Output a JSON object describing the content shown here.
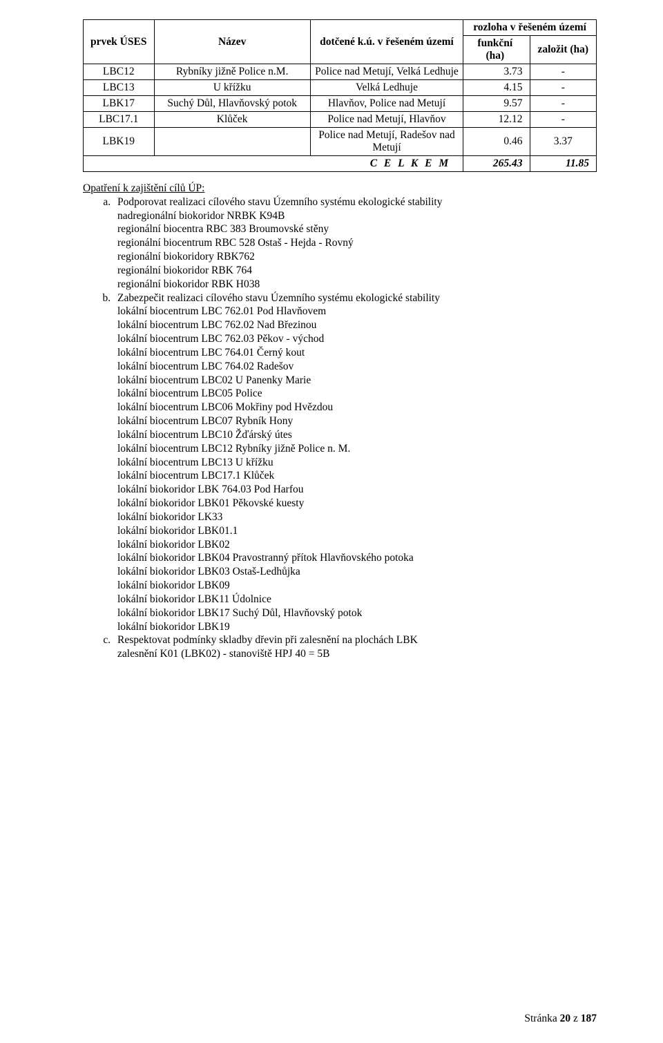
{
  "table": {
    "header": {
      "prvek": "prvek ÚSES",
      "nazev": "Název",
      "dotcene": "dotčené k.ú. v řešeném území",
      "rozloha": "rozloha v řešeném území",
      "funkcni": "funkční (ha)",
      "zalozit": "založit (ha)"
    },
    "rows": [
      {
        "c1": "LBC12",
        "c2": "Rybníky jižně Police n.M.",
        "c3": "Police nad Metují, Velká Ledhuje",
        "c4": "3.73",
        "c5": "-"
      },
      {
        "c1": "LBC13",
        "c2": "U křížku",
        "c3": "Velká Ledhuje",
        "c4": "4.15",
        "c5": "-"
      },
      {
        "c1": "LBK17",
        "c2": "Suchý Důl, Hlavňovský potok",
        "c3": "Hlavňov, Police nad Metují",
        "c4": "9.57",
        "c5": "-"
      },
      {
        "c1": "LBC17.1",
        "c2": "Klůček",
        "c3": "Police nad Metují, Hlavňov",
        "c4": "12.12",
        "c5": "-"
      },
      {
        "c1": "LBK19",
        "c2": "",
        "c3": "Police nad Metují, Radešov nad Metují",
        "c4": "0.46",
        "c5": "3.37"
      }
    ],
    "total": {
      "label": "C E L K E M",
      "c4": "265.43",
      "c5": "11.85"
    }
  },
  "measures": {
    "heading": "Opatření k zajištění cílů ÚP:",
    "a_lead": "Podporovat realizaci cílového stavu Územního systému ekologické stability",
    "a_lines": [
      "nadregionální biokoridor NRBK K94B",
      "regionální biocentra RBC 383 Broumovské stěny",
      "regionální biocentrum RBC 528 Ostaš - Hejda - Rovný",
      "regionální biokoridory RBK762",
      "regionální biokoridor RBK 764",
      "regionální biokoridor RBK H038"
    ],
    "b_lead": "Zabezpečit realizaci cílového stavu Územního systému ekologické stability",
    "b_lines": [
      "lokální biocentrum LBC 762.01 Pod Hlavňovem",
      "lokální biocentrum LBC 762.02 Nad Březinou",
      "lokální biocentrum LBC 762.03 Pěkov - východ",
      "lokální biocentrum LBC 764.01 Černý kout",
      "lokální biocentrum LBC 764.02 Radešov",
      "lokální biocentrum LBC02   U Panenky Marie",
      "lokální biocentrum LBC05 Police",
      "lokální biocentrum LBC06   Mokřiny pod Hvězdou",
      "lokální biocentrum LBC07   Rybník Hony",
      "lokální biocentrum LBC10   Žďárský útes",
      "lokální biocentrum LBC12   Rybníky jižně Police n. M.",
      "lokální biocentrum LBC13   U křížku",
      "lokální biocentrum LBC17.1 Klůček",
      "lokální biokoridor LBK 764.03 Pod Harfou",
      "lokální biokoridor LBK01 Pěkovské kuesty",
      "lokální biokoridor LK33",
      "lokální biokoridor LBK01.1",
      "lokální biokoridor LBK02",
      "lokální biokoridor LBK04 Pravostranný přítok Hlavňovského potoka",
      "lokální biokoridor LBK03 Ostaš-Ledhůjka",
      "lokální biokoridor LBK09",
      "lokální biokoridor LBK11 Údolnice",
      "lokální biokoridor LBK17 Suchý Důl, Hlavňovský potok",
      "lokální biokoridor LBK19"
    ],
    "c_lead": "Respektovat podmínky skladby dřevin při zalesnění na plochách LBK",
    "c_lines": [
      "zalesnění K01 (LBK02) - stanoviště HPJ 40 = 5B"
    ]
  },
  "footer": {
    "prefix": "Stránka ",
    "bold": "20",
    "suffix": " z ",
    "total": "187"
  }
}
